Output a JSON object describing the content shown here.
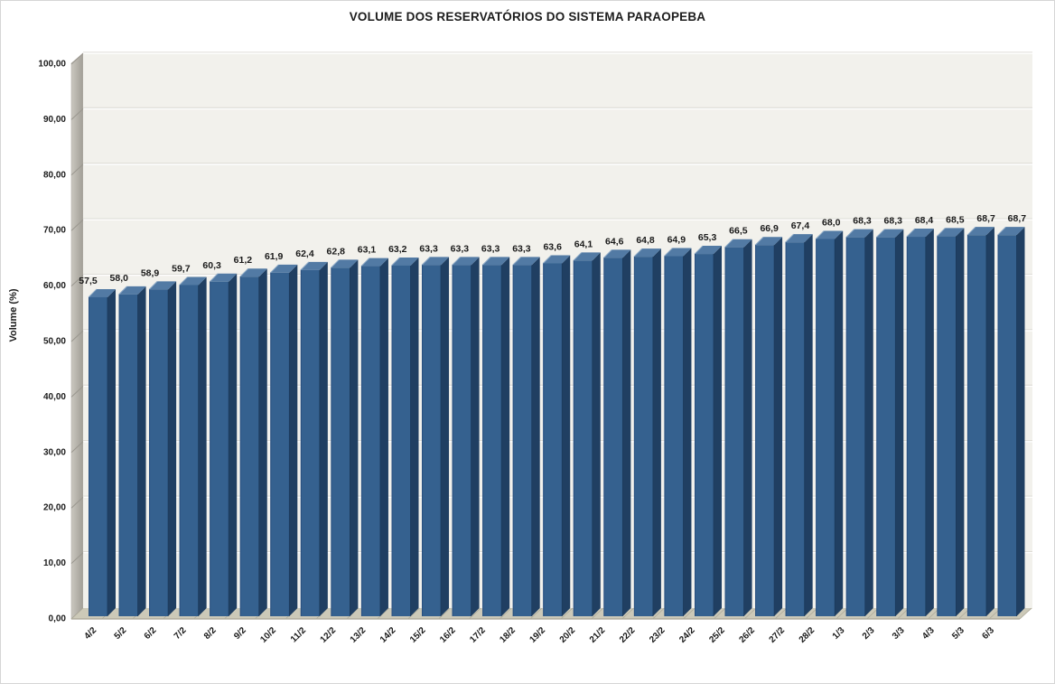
{
  "chart_data": {
    "type": "bar",
    "style": "3d-column",
    "title": "VOLUME DOS RESERVATÓRIOS DO SISTEMA PARAOPEBA",
    "ylabel": "Volume (%)",
    "xlabel": "",
    "categories": [
      "4/2",
      "5/2",
      "6/2",
      "7/2",
      "8/2",
      "9/2",
      "10/2",
      "11/2",
      "12/2",
      "13/2",
      "14/2",
      "15/2",
      "16/2",
      "17/2",
      "18/2",
      "19/2",
      "20/2",
      "21/2",
      "22/2",
      "23/2",
      "24/2",
      "25/2",
      "26/2",
      "27/2",
      "28/2",
      "1/3",
      "2/3",
      "3/3",
      "4/3",
      "5/3",
      "6/3"
    ],
    "values": [
      57.5,
      58.0,
      58.9,
      59.7,
      60.3,
      61.2,
      61.9,
      62.4,
      62.8,
      63.1,
      63.2,
      63.3,
      63.3,
      63.3,
      63.3,
      63.6,
      64.1,
      64.6,
      64.8,
      64.9,
      65.3,
      66.5,
      66.9,
      67.4,
      68.0,
      68.3,
      68.3,
      68.4,
      68.5,
      68.7,
      68.7
    ],
    "value_labels": [
      "57,5",
      "58,0",
      "58,9",
      "59,7",
      "60,3",
      "61,2",
      "61,9",
      "62,4",
      "62,8",
      "63,1",
      "63,2",
      "63,3",
      "63,3",
      "63,3",
      "63,3",
      "63,6",
      "64,1",
      "64,6",
      "64,8",
      "64,9",
      "65,3",
      "66,5",
      "66,9",
      "67,4",
      "68,0",
      "68,3",
      "68,3",
      "68,4",
      "68,5",
      "68,7",
      "68,7"
    ],
    "y_ticks": [
      "0,00",
      "10,00",
      "20,00",
      "30,00",
      "40,00",
      "50,00",
      "60,00",
      "70,00",
      "80,00",
      "90,00",
      "100,00"
    ],
    "ylim": [
      0,
      100
    ],
    "y_tick_step": 10,
    "grid": true,
    "legend": false,
    "decimal_separator": ",",
    "colors": {
      "bar_front": "#35618f",
      "bar_side": "#203f62",
      "bar_top": "#527aa4",
      "bar_top_highlight": "#8fabc7",
      "bar_front_edge": "#2a5080",
      "bar_side_edge": "#1b3a5c",
      "back_wall": "#f2f1ec",
      "side_wall_light": "#cac7bf",
      "side_wall_dark": "#a19e96",
      "floor": "#ccc9b8",
      "floor_edge": "#a8a595",
      "gridline": "#ffffff",
      "gridline_shadow": "#d9d7d0",
      "tick": "#9a978f",
      "label": "#1a1a1a",
      "frame_border": "#d6d6d6"
    }
  }
}
